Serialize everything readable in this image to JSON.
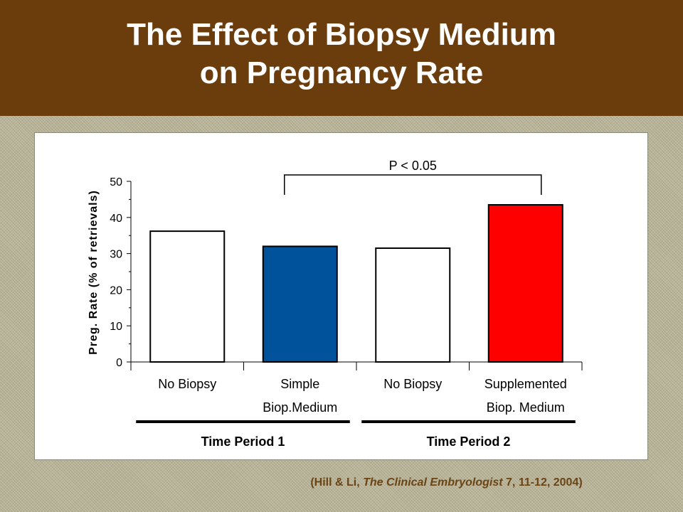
{
  "header": {
    "title_line1": "The Effect of Biopsy Medium",
    "title_line2": "on Pregnancy Rate"
  },
  "citation": {
    "prefix": "(Hill & Li, ",
    "journal": "The Clinical Embryologist",
    "suffix": " 7, 11-12, 2004)"
  },
  "colors": {
    "header_bg": "#6b3d0c",
    "blue_bar": "#00529b",
    "red_bar": "#ff0000",
    "white_bar": "#ffffff"
  },
  "chart_data": {
    "type": "bar",
    "ylabel": "Preg. Rate (% of retrievals)",
    "ylim": [
      0,
      50
    ],
    "yticks": [
      "0",
      "10",
      "20",
      "30",
      "40",
      "50"
    ],
    "grid": false,
    "categories": [
      {
        "line1": "No Biopsy",
        "line2": ""
      },
      {
        "line1": "Simple",
        "line2": "Biop.Medium"
      },
      {
        "line1": "No Biopsy",
        "line2": ""
      },
      {
        "line1": "Supplemented",
        "line2": "Biop. Medium"
      }
    ],
    "values": [
      36.2,
      32.0,
      31.5,
      43.5
    ],
    "bar_colors": [
      "#ffffff",
      "#00529b",
      "#ffffff",
      "#ff0000"
    ],
    "annotation": {
      "text": "P < 0.05",
      "from": 1,
      "to": 3
    },
    "groups": [
      {
        "label": "Time Period 1",
        "categories": [
          0,
          1
        ]
      },
      {
        "label": "Time Period 2",
        "categories": [
          2,
          3
        ]
      }
    ]
  }
}
